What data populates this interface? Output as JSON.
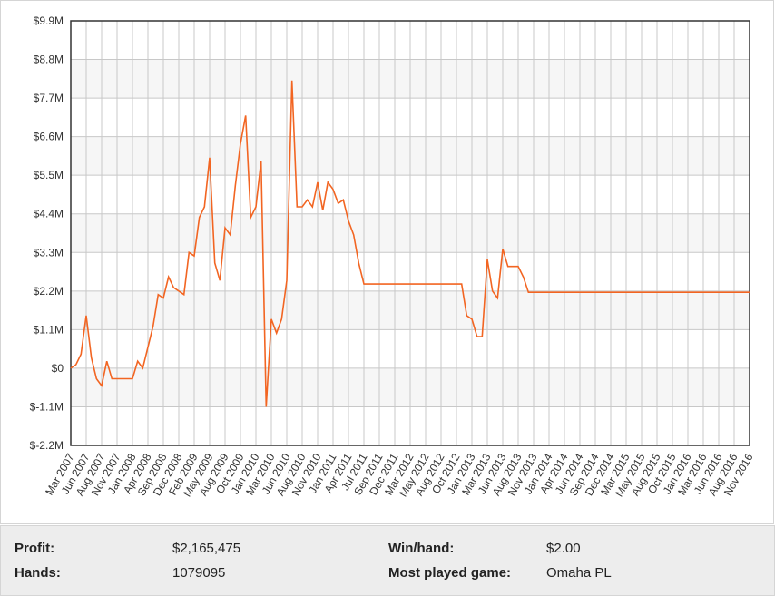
{
  "chart_data": {
    "type": "line",
    "categories": [
      "Mar 2007",
      null,
      null,
      "Jun 2007",
      null,
      null,
      "Aug 2007",
      null,
      null,
      "Nov 2007",
      null,
      null,
      "Jan 2008",
      null,
      null,
      "Apr 2008",
      null,
      null,
      "Sep 2008",
      null,
      null,
      "Dec 2008",
      null,
      null,
      "Feb 2009",
      null,
      null,
      "May 2009",
      null,
      null,
      "Aug 2009",
      null,
      null,
      "Oct 2009",
      null,
      null,
      "Jan 2010",
      null,
      null,
      "Mar 2010",
      null,
      null,
      "Jun 2010",
      null,
      null,
      "Aug 2010",
      null,
      null,
      "Nov 2010",
      null,
      null,
      "Jan 2011",
      null,
      null,
      "Apr 2011",
      null,
      null,
      "Jul 2011",
      null,
      null,
      "Sep 2011",
      null,
      null,
      "Dec 2011",
      null,
      null,
      "Mar 2012",
      null,
      null,
      "May 2012",
      null,
      null,
      "Aug 2012",
      null,
      null,
      "Oct 2012",
      null,
      null,
      "Jan 2013",
      null,
      null,
      "Mar 2013",
      null,
      null,
      "Jun 2013",
      null,
      null,
      "Aug 2013",
      null,
      null,
      "Nov 2013",
      null,
      null,
      "Jan 2014",
      null,
      null,
      "Apr 2014",
      null,
      null,
      "Jun 2014",
      null,
      null,
      "Sep 2014",
      null,
      null,
      "Dec 2014",
      null,
      null,
      "Mar 2015",
      null,
      null,
      "May 2015",
      null,
      null,
      "Aug 2015",
      null,
      null,
      "Oct 2015",
      null,
      null,
      "Jan 2016",
      null,
      null,
      "Mar 2016",
      null,
      null,
      "Jun 2016",
      null,
      null,
      "Aug 2016",
      null,
      null,
      "Nov 2016"
    ],
    "values": [
      0,
      100000,
      400000,
      1500000,
      300000,
      -300000,
      -500000,
      200000,
      -300000,
      -300000,
      -300000,
      -300000,
      -300000,
      200000,
      0,
      600000,
      1200000,
      2100000,
      2000000,
      2600000,
      2300000,
      2200000,
      2100000,
      3300000,
      3200000,
      4300000,
      4600000,
      6000000,
      3000000,
      2500000,
      4000000,
      3800000,
      5200000,
      6400000,
      7200000,
      4300000,
      4600000,
      5900000,
      -1100000,
      1400000,
      1000000,
      1400000,
      2500000,
      8200000,
      4600000,
      4600000,
      4800000,
      4600000,
      5300000,
      4500000,
      5300000,
      5100000,
      4700000,
      4800000,
      4200000,
      3800000,
      3000000,
      2400000,
      2400000,
      2400000,
      2400000,
      2400000,
      2400000,
      2400000,
      2400000,
      2400000,
      2400000,
      2400000,
      2400000,
      2400000,
      2400000,
      2400000,
      2400000,
      2400000,
      2400000,
      2400000,
      2400000,
      1500000,
      1400000,
      900000,
      900000,
      3100000,
      2200000,
      2000000,
      3400000,
      2900000,
      2900000,
      2900000,
      2600000,
      2165475,
      2165475,
      2165475,
      2165475,
      2165475,
      2165475,
      2165475,
      2165475,
      2165475,
      2165475,
      2165475,
      2165475,
      2165475,
      2165475,
      2165475,
      2165475,
      2165475,
      2165475,
      2165475,
      2165475,
      2165475,
      2165475,
      2165475,
      2165475,
      2165475,
      2165475,
      2165475,
      2165475,
      2165475,
      2165475,
      2165475,
      2165475,
      2165475,
      2165475,
      2165475,
      2165475,
      2165475,
      2165475,
      2165475,
      2165475,
      2165475,
      2165475,
      2165475,
      2165475
    ],
    "color": "#f26522",
    "ylim": [
      -2200000,
      9900000
    ],
    "yticks": [
      {
        "value": -2200000,
        "label": "$-2.2M"
      },
      {
        "value": -1100000,
        "label": "$-1.1M"
      },
      {
        "value": 0,
        "label": "$0"
      },
      {
        "value": 1100000,
        "label": "$1.1M"
      },
      {
        "value": 2200000,
        "label": "$2.2M"
      },
      {
        "value": 3300000,
        "label": "$3.3M"
      },
      {
        "value": 4400000,
        "label": "$4.4M"
      },
      {
        "value": 5500000,
        "label": "$5.5M"
      },
      {
        "value": 6600000,
        "label": "$6.6M"
      },
      {
        "value": 7700000,
        "label": "$7.7M"
      },
      {
        "value": 8800000,
        "label": "$8.8M"
      },
      {
        "value": 9900000,
        "label": "$9.9M"
      }
    ],
    "grid": true
  },
  "stats": [
    {
      "label": "Profit:",
      "value": "$2,165,475"
    },
    {
      "label": "Hands:",
      "value": "1079095"
    },
    {
      "label": "Win/hand:",
      "value": "$2.00"
    },
    {
      "label": "Most played game:",
      "value": "Omaha PL"
    }
  ]
}
